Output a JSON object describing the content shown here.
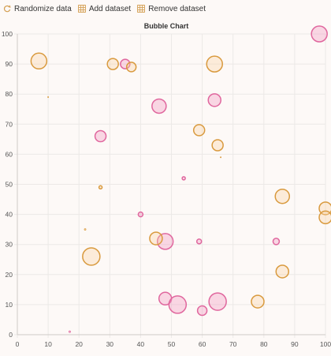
{
  "toolbar": {
    "randomize_label": "Randomize data",
    "add_label": "Add dataset",
    "remove_label": "Remove dataset",
    "randomize_icon": "refresh-icon",
    "add_icon": "table-plus-icon",
    "remove_icon": "table-minus-icon",
    "icon_color": "#d4a054"
  },
  "chart_data": {
    "type": "scatter",
    "subtype": "bubble",
    "title": "Bubble Chart",
    "xlim": [
      0,
      100
    ],
    "ylim": [
      0,
      100
    ],
    "x_ticks": [
      "0",
      "10",
      "20",
      "30",
      "40",
      "50",
      "60",
      "70",
      "80",
      "90",
      "100"
    ],
    "y_ticks": [
      "0",
      "10",
      "20",
      "30",
      "40",
      "50",
      "60",
      "70",
      "80",
      "90",
      "100"
    ],
    "grid": true,
    "legend": "none",
    "series": [
      {
        "color": "#e0679e",
        "fill": "rgba(240,150,190,0.35)",
        "points": [
          {
            "x": 98,
            "y": 100,
            "r": 10
          },
          {
            "x": 35,
            "y": 90,
            "r": 6
          },
          {
            "x": 64,
            "y": 78,
            "r": 8
          },
          {
            "x": 46,
            "y": 76,
            "r": 9
          },
          {
            "x": 27,
            "y": 66,
            "r": 7
          },
          {
            "x": 54,
            "y": 52,
            "r": 2
          },
          {
            "x": 40,
            "y": 40,
            "r": 3
          },
          {
            "x": 48,
            "y": 31,
            "r": 10
          },
          {
            "x": 59,
            "y": 31,
            "r": 3
          },
          {
            "x": 84,
            "y": 31,
            "r": 4
          },
          {
            "x": 48,
            "y": 12,
            "r": 8
          },
          {
            "x": 52,
            "y": 10,
            "r": 11
          },
          {
            "x": 65,
            "y": 11,
            "r": 11
          },
          {
            "x": 60,
            "y": 8,
            "r": 6
          },
          {
            "x": 17,
            "y": 1,
            "r": 1
          }
        ]
      },
      {
        "color": "#d99a3e",
        "fill": "rgba(248,210,160,0.35)",
        "points": [
          {
            "x": 7,
            "y": 91,
            "r": 10
          },
          {
            "x": 31,
            "y": 90,
            "r": 7
          },
          {
            "x": 37,
            "y": 89,
            "r": 6
          },
          {
            "x": 64,
            "y": 90,
            "r": 10
          },
          {
            "x": 10,
            "y": 79,
            "r": 0.6
          },
          {
            "x": 59,
            "y": 68,
            "r": 7
          },
          {
            "x": 65,
            "y": 63,
            "r": 7
          },
          {
            "x": 66,
            "y": 59,
            "r": 0.6
          },
          {
            "x": 27,
            "y": 49,
            "r": 2
          },
          {
            "x": 86,
            "y": 46,
            "r": 9
          },
          {
            "x": 100,
            "y": 42,
            "r": 8
          },
          {
            "x": 100,
            "y": 39,
            "r": 8
          },
          {
            "x": 22,
            "y": 35,
            "r": 1
          },
          {
            "x": 45,
            "y": 32,
            "r": 8
          },
          {
            "x": 24,
            "y": 26,
            "r": 11
          },
          {
            "x": 86,
            "y": 21,
            "r": 8
          },
          {
            "x": 78,
            "y": 11,
            "r": 8
          }
        ]
      }
    ]
  }
}
